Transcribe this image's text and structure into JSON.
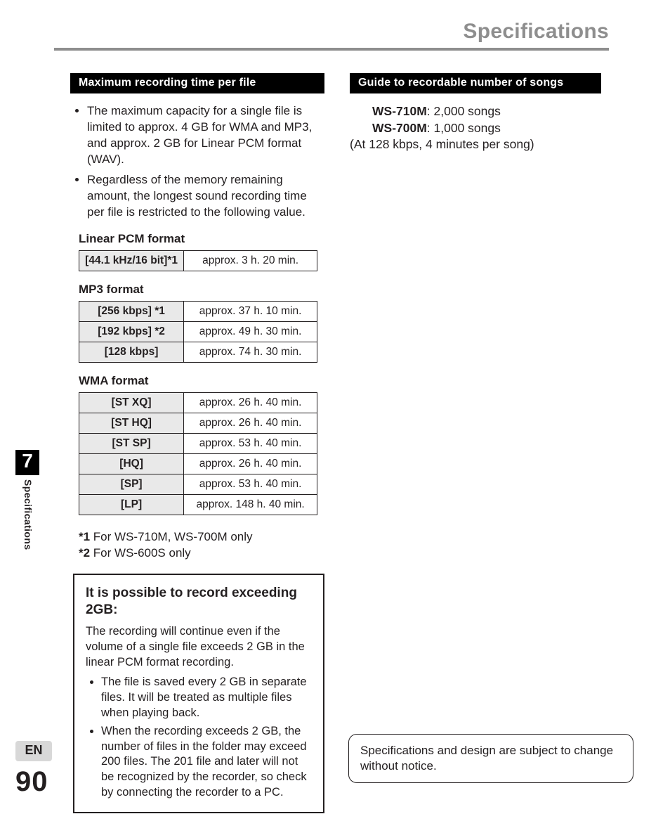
{
  "header": {
    "title": "Specifications"
  },
  "sidebar": {
    "chapter_number": "7",
    "section_label": "Specifications",
    "lang": "EN",
    "page_number": "90"
  },
  "left": {
    "bar_title": "Maximum recording time per file",
    "intro_bullets": [
      "The maximum capacity for a single file is limited to approx. 4 GB for WMA and MP3, and approx. 2 GB for Linear PCM format (WAV).",
      "Regardless of the memory remaining amount, the longest sound recording time per file is restricted to the following value."
    ],
    "tables": {
      "lpcm": {
        "title": "Linear PCM format",
        "rows": [
          {
            "label": "[44.1 kHz/16 bit]*1",
            "value": "approx. 3 h. 20 min."
          }
        ]
      },
      "mp3": {
        "title": "MP3 format",
        "rows": [
          {
            "label": "[256 kbps] *1",
            "value": "approx. 37 h. 10 min."
          },
          {
            "label": "[192 kbps]  *2",
            "value": "approx. 49 h. 30 min."
          },
          {
            "label": "[128 kbps]",
            "value": "approx. 74 h. 30 min."
          }
        ]
      },
      "wma": {
        "title": "WMA format",
        "rows": [
          {
            "label": "[ST XQ]",
            "value": "approx. 26 h. 40 min."
          },
          {
            "label": "[ST HQ]",
            "value": "approx. 26 h. 40 min."
          },
          {
            "label": "[ST SP]",
            "value": "approx. 53 h. 40 min."
          },
          {
            "label": "[HQ]",
            "value": "approx. 26 h. 40 min."
          },
          {
            "label": "[SP]",
            "value": "approx. 53 h. 40 min."
          },
          {
            "label": "[LP]",
            "value": "approx. 148 h. 40 min."
          }
        ]
      }
    },
    "asterisk_notes": {
      "n1": {
        "mark": "*1",
        "text": " For WS-710M, WS-700M only"
      },
      "n2": {
        "mark": "*2",
        "text": " For WS-600S only"
      }
    },
    "box": {
      "title": "It is possible to record exceeding 2GB:",
      "lead": "The recording will continue even if the volume of a single file exceeds 2 GB in the linear PCM format recording.",
      "bullets": [
        "The file is saved every 2 GB in separate files. It will be treated as multiple files when playing back.",
        "When the recording exceeds 2 GB, the number of files in the folder may exceed 200 files. The 201 file and later will not be recognized by the recorder, so check by connecting the recorder to a PC."
      ]
    }
  },
  "right": {
    "bar_title": "Guide to recordable number of songs",
    "songs": {
      "m1": {
        "model": "WS-710M",
        "count": ": 2,000 songs"
      },
      "m2": {
        "model": "WS-700M",
        "count": ": 1,000 songs"
      },
      "condition": "(At 128 kbps, 4 minutes per song)"
    }
  },
  "notice": {
    "text": "Specifications and design are subject to change without notice."
  },
  "colors": {
    "header_grey": "#8e8e8e",
    "black": "#000000",
    "cell_bg": "#e9e9e9",
    "en_bg": "#d8d8d8"
  }
}
